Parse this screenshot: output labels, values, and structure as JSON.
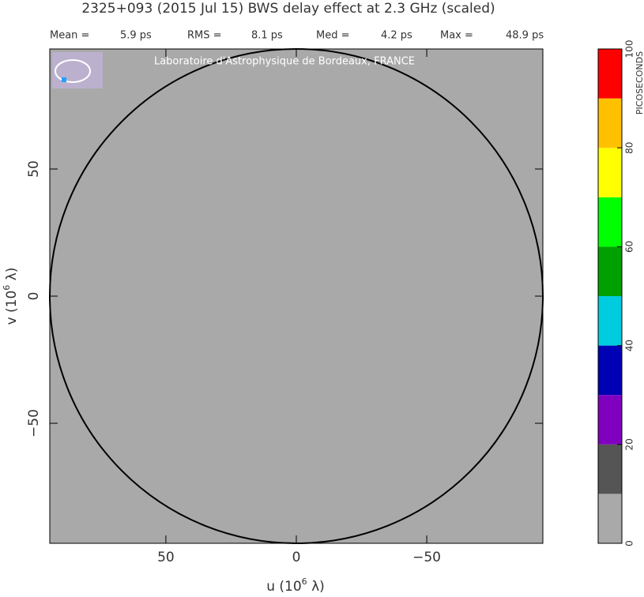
{
  "chart_data": {
    "type": "contour",
    "title": "2325+093  (2015 Jul 15)   BWS delay effect at  2.3 GHz (scaled)",
    "stats": [
      {
        "name": "Mean =",
        "text": "5.9 ps"
      },
      {
        "name": "RMS =",
        "text": "8.1 ps"
      },
      {
        "name": "Med =",
        "text": "4.2 ps"
      },
      {
        "name": "Max =",
        "text": "48.9 ps"
      }
    ],
    "watermark": "Laboratoire d'Astrophysique de Bordeaux, FRANCE",
    "x_label": {
      "pre": "u  (10",
      "sup": "6",
      "post": " λ)"
    },
    "y_label": {
      "pre": "v  (10",
      "sup": "6",
      "post": " λ)"
    },
    "xlim": [
      94.5,
      -94.5
    ],
    "ylim": [
      -97.2,
      97.2
    ],
    "xticks": [
      50,
      0,
      {
        "value": -50,
        "label": "−50"
      }
    ],
    "yticks": [
      {
        "value": -50,
        "label": "−50"
      },
      0,
      50
    ],
    "colorbar": {
      "label": "PICOSECONDS",
      "levels": [
        0,
        10,
        20,
        30,
        40,
        50,
        60,
        70,
        80,
        90,
        100
      ],
      "colors": [
        "#a9a9a9",
        "#555555",
        "#8000c0",
        "#0000b4",
        "#00cce0",
        "#00a000",
        "#00ff00",
        "#ffff00",
        "#ffc000",
        "#ff0000"
      ],
      "ticks": [
        0,
        20,
        40,
        60,
        80,
        100
      ]
    }
  }
}
